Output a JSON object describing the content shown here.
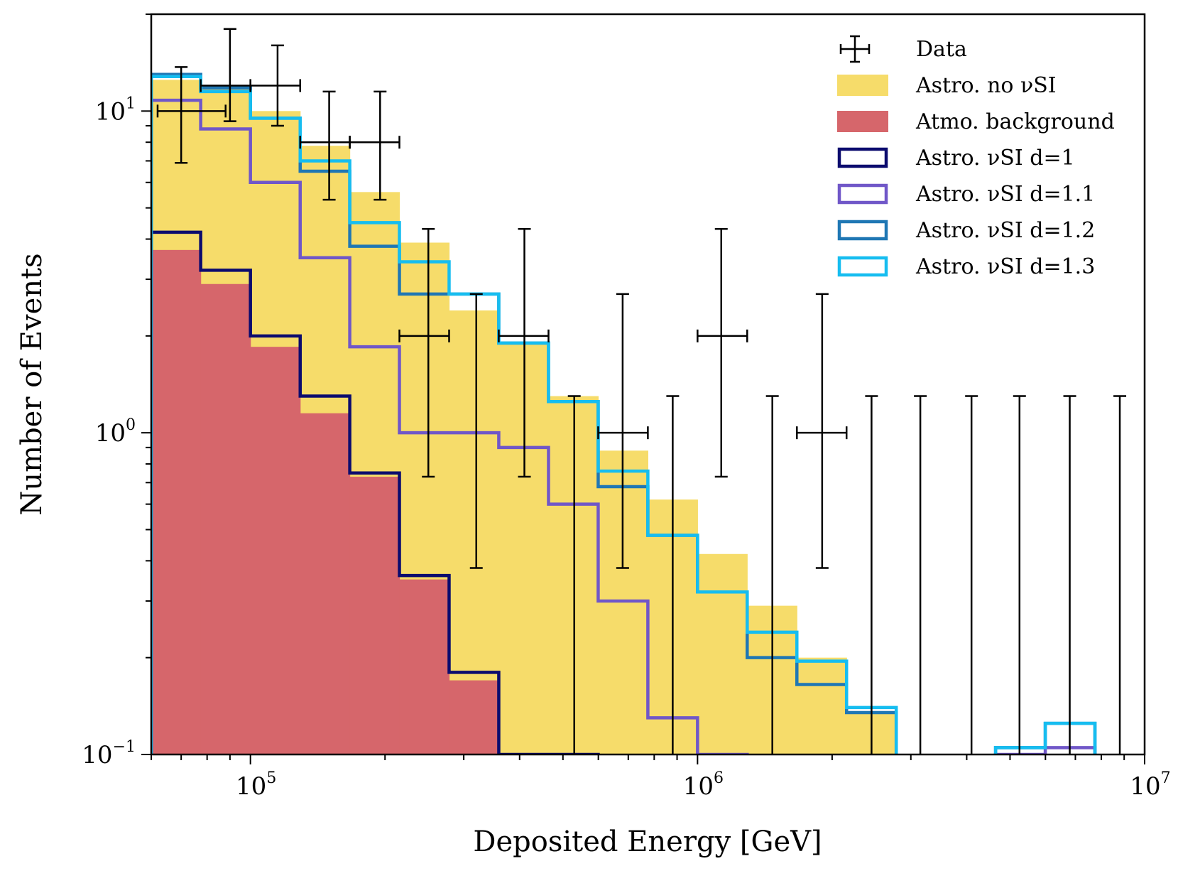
{
  "chart_data": {
    "type": "histogram",
    "xscale": "log",
    "yscale": "log",
    "xlabel": "Deposited Energy [GeV]",
    "ylabel": "Number of Events",
    "xlim": [
      60000,
      10000000
    ],
    "ylim": [
      0.1,
      20
    ],
    "xticks": [
      {
        "value": 100000,
        "label": "10^5"
      },
      {
        "value": 1000000,
        "label": "10^6"
      },
      {
        "value": 10000000,
        "label": "10^7"
      }
    ],
    "yticks": [
      {
        "value": 0.1,
        "label": "10^−1"
      },
      {
        "value": 1,
        "label": "10^0"
      },
      {
        "value": 10,
        "label": "10^1"
      }
    ],
    "bin_edges": [
      60000,
      77400,
      100000,
      129200,
      166800,
      215400,
      278200,
      359300,
      464200,
      599500,
      774300,
      1000000,
      1291500,
      1668100,
      2154400,
      2782600,
      3593800,
      4641600,
      5994800,
      7742600,
      10000000
    ],
    "legend": {
      "position": "upper right",
      "entries": [
        {
          "label": "Data",
          "kind": "errorbar",
          "color": "#000000"
        },
        {
          "label": "Astro. no νSI",
          "kind": "fill",
          "color": "#f6dc6a"
        },
        {
          "label": "Atmo. background",
          "kind": "fill",
          "color": "#d6666b"
        },
        {
          "label": "Astro. νSI d=1",
          "kind": "line",
          "color": "#0b0b6e"
        },
        {
          "label": "Astro. νSI d=1.1",
          "kind": "line",
          "color": "#7057c8"
        },
        {
          "label": "Astro. νSI d=1.2",
          "kind": "line",
          "color": "#1f77b4"
        },
        {
          "label": "Astro. νSI d=1.3",
          "kind": "line",
          "color": "#16bdf0"
        }
      ]
    },
    "series": [
      {
        "name": "Astro. no νSI",
        "style": "fill",
        "color": "#f6dc6a",
        "values": [
          12.5,
          12,
          10,
          7.8,
          5.6,
          3.9,
          2.4,
          1.9,
          1.3,
          0.88,
          0.62,
          0.42,
          0.29,
          0.2,
          0.135,
          0,
          0,
          0,
          0,
          0
        ]
      },
      {
        "name": "Atmo. background",
        "style": "fill",
        "color": "#d6666b",
        "values": [
          3.7,
          2.9,
          1.85,
          1.15,
          0.73,
          0.35,
          0.17,
          0.1,
          0,
          0,
          0,
          0,
          0,
          0,
          0,
          0,
          0,
          0,
          0,
          0
        ]
      },
      {
        "name": "Astro. νSI d=1",
        "style": "step",
        "color": "#0b0b6e",
        "values": [
          4.2,
          3.2,
          2.0,
          1.3,
          0.75,
          0.36,
          0.18,
          0.1,
          0.1,
          0,
          0,
          0,
          0,
          0,
          0,
          0,
          0,
          0,
          0,
          0
        ]
      },
      {
        "name": "Astro. νSI d=1.1",
        "style": "step",
        "color": "#7057c8",
        "values": [
          10.8,
          8.8,
          6.0,
          3.5,
          1.85,
          1.0,
          1.0,
          0.9,
          0.6,
          0.3,
          0.13,
          0.1,
          0,
          0,
          0,
          0,
          0,
          0.1,
          0.105,
          0
        ]
      },
      {
        "name": "Astro. νSI d=1.2",
        "style": "step",
        "color": "#1f77b4",
        "values": [
          13.0,
          11.8,
          9.5,
          6.5,
          3.8,
          2.7,
          2.7,
          1.9,
          1.25,
          0.68,
          0.48,
          0.32,
          0.2,
          0.165,
          0.135,
          0,
          0,
          0.105,
          0.125,
          0
        ]
      },
      {
        "name": "Astro. νSI d=1.3",
        "style": "step",
        "color": "#16bdf0",
        "values": [
          12.8,
          11.5,
          9.5,
          7.0,
          4.5,
          3.4,
          2.7,
          1.9,
          1.25,
          0.76,
          0.48,
          0.32,
          0.24,
          0.195,
          0.14,
          0,
          0,
          0.105,
          0.125,
          0
        ]
      }
    ],
    "data_points": [
      {
        "x": 70000,
        "y": 10,
        "xerr": [
          62000,
          88000
        ],
        "yerr": [
          6.9,
          13.7
        ]
      },
      {
        "x": 90000,
        "y": 12,
        "xerr": [
          77400,
          100000
        ],
        "yerr": [
          9.3,
          18
        ]
      },
      {
        "x": 115000,
        "y": 12,
        "xerr": [
          100000,
          129200
        ],
        "yerr": [
          9,
          16
        ]
      },
      {
        "x": 150000,
        "y": 8,
        "xerr": [
          129200,
          166800
        ],
        "yerr": [
          5.3,
          11.5
        ]
      },
      {
        "x": 195000,
        "y": 8,
        "xerr": [
          166800,
          215400
        ],
        "yerr": [
          5.3,
          11.5
        ]
      },
      {
        "x": 250000,
        "y": 2,
        "xerr": [
          215400,
          278200
        ],
        "yerr": [
          0.73,
          4.3
        ]
      },
      {
        "x": 320000,
        "y": 0,
        "xerr": null,
        "yerr": [
          0.38,
          2.7
        ]
      },
      {
        "x": 410000,
        "y": 2,
        "xerr": [
          359300,
          464200
        ],
        "yerr": [
          0.73,
          4.3
        ]
      },
      {
        "x": 530000,
        "y": 0,
        "xerr": null,
        "yerr": [
          0.1,
          1.3
        ]
      },
      {
        "x": 680000,
        "y": 1,
        "xerr": [
          599500,
          774300
        ],
        "yerr": [
          0.38,
          2.7
        ]
      },
      {
        "x": 880000,
        "y": 0,
        "xerr": null,
        "yerr": [
          0.1,
          1.3
        ]
      },
      {
        "x": 1130000,
        "y": 2,
        "xerr": [
          1000000,
          1291500
        ],
        "yerr": [
          0.73,
          4.3
        ]
      },
      {
        "x": 1470000,
        "y": 0,
        "xerr": null,
        "yerr": [
          0.1,
          1.3
        ]
      },
      {
        "x": 1900000,
        "y": 1,
        "xerr": [
          1668100,
          2154400
        ],
        "yerr": [
          0.38,
          2.7
        ]
      },
      {
        "x": 2450000,
        "y": 0,
        "xerr": null,
        "yerr": [
          0.1,
          1.3
        ]
      },
      {
        "x": 3150000,
        "y": 0,
        "xerr": null,
        "yerr": [
          0.1,
          1.3
        ]
      },
      {
        "x": 4100000,
        "y": 0,
        "xerr": null,
        "yerr": [
          0.1,
          1.3
        ]
      },
      {
        "x": 5250000,
        "y": 0,
        "xerr": null,
        "yerr": [
          0.1,
          1.3
        ]
      },
      {
        "x": 6800000,
        "y": 0,
        "xerr": null,
        "yerr": [
          0.1,
          1.3
        ]
      },
      {
        "x": 8800000,
        "y": 0,
        "xerr": null,
        "yerr": [
          0.1,
          1.3
        ]
      }
    ]
  }
}
